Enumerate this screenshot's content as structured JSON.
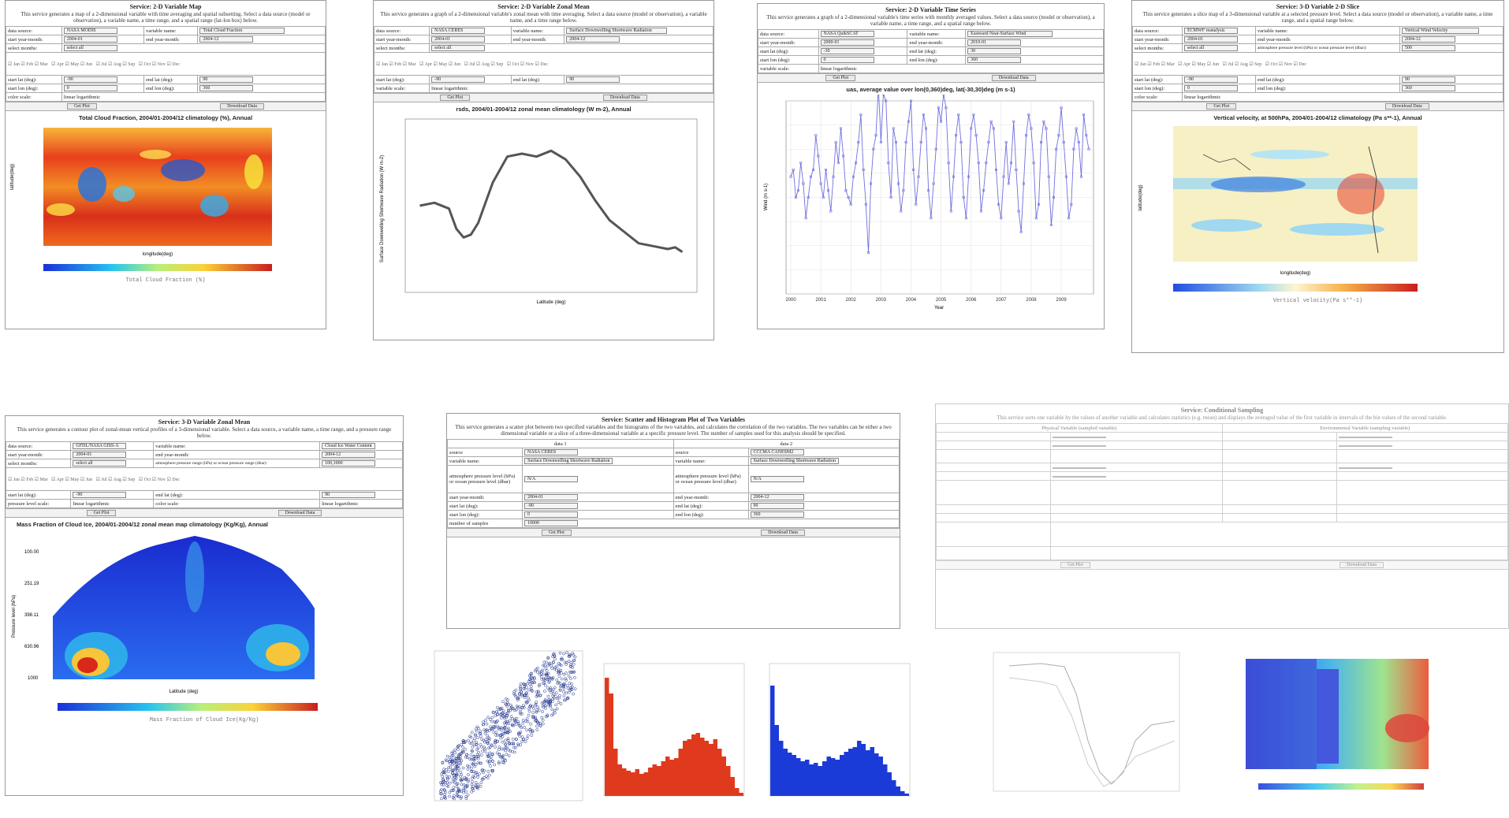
{
  "panels": {
    "map": {
      "title": "Service: 2-D Variable Map",
      "desc": "This service generates a map of a 2-dimensional variable with time averaging and spatial subsetting. Select a data source (model or observation), a variable name, a time range, and a spatial range (lat-lon box) below.",
      "labels": {
        "source": "data source:",
        "var": "variable name:",
        "start": "start year-month:",
        "end": "end year-month:",
        "months": "select months:",
        "startlat": "start lat (deg):",
        "endlat": "end lat (deg):",
        "startlon": "start lon (deg):",
        "endlon": "end lon (deg):",
        "scale": "color scale:"
      },
      "values": {
        "source": "NASA MODIS",
        "var": "Total Cloud Fraction",
        "start": "2004-01",
        "end": "2004-12",
        "months": "select all",
        "startlat": "-90",
        "endlat": "90",
        "startlon": "0",
        "endlon": "360",
        "scale": "linear  logarithmic"
      },
      "buttons": [
        "Get Plot",
        "Download Data"
      ],
      "chart_title": "Total Cloud Fraction, 2004/01-2004/12 climatology (%), Annual",
      "xlabel": "longitude(deg)",
      "ylabel": "latitude(deg)",
      "cbar_label": "Total Cloud Fraction (%)"
    },
    "zonal": {
      "title": "Service: 2-D Variable Zonal Mean",
      "desc": "This service generates a graph of a 2-dimensional variable's zonal mean with time averaging. Select a data source (model or observation), a variable name, and a time range below.",
      "labels": {
        "source": "data source:",
        "var": "variable name:",
        "start": "start year-month:",
        "end": "end year-month:",
        "months": "select months:",
        "startlat": "start lat (deg):",
        "endlat": "end lat (deg):",
        "scale": "variable scale:"
      },
      "values": {
        "source": "NASA CERES",
        "var": "Surface Downwelling Shortwave Radiation",
        "start": "2004-01",
        "end": "2004-12",
        "months": "select all",
        "startlat": "-90",
        "endlat": "90",
        "scale": "linear  logarithmic"
      },
      "buttons": [
        "Get Plot",
        "Download Data"
      ],
      "chart_title": "rsds, 2004/01-2004/12 zonal mean climatology (W m-2), Annual",
      "xlabel": "Latitude (deg)",
      "ylabel": "Surface Downwelling Shortwave Radiation (W m-2)"
    },
    "timeseries": {
      "title": "Service: 2-D Variable Time Series",
      "desc": "This service generates a graph of a 2-dimensional variable's time series with monthly averaged values. Select a data source (model or observation), a variable name, a time range, and a spatial range below.",
      "labels": {
        "source": "data source:",
        "var": "variable name:",
        "start": "start year-month:",
        "end": "end year-month:",
        "startlat": "start lat (deg):",
        "endlat": "end lat (deg):",
        "startlon": "start lon (deg):",
        "endlon": "end lon (deg):",
        "scale": "variable scale:"
      },
      "values": {
        "source": "NASA QuikSCAT",
        "var": "Eastward Near-Surface Wind",
        "start": "2000-01",
        "end": "2010-01",
        "startlat": "-30",
        "endlat": "30",
        "startlon": "0",
        "endlon": "360",
        "scale": "linear  logarithmic"
      },
      "buttons": [
        "Get Plot",
        "Download Data"
      ],
      "chart_title": "uas, average value over lon(0,360)deg, lat(-30,30)deg (m s-1)",
      "xlabel": "Year",
      "ylabel": "Wind (m s-1)"
    },
    "slice": {
      "title": "Service: 3-D Variable 2-D Slice",
      "desc": "This service generates a slice map of a 3-dimensional variable at a selected pressure level. Select a data source (model or observation), a variable name, a time range, and a spatial range below.",
      "labels": {
        "source": "data source:",
        "var": "variable name:",
        "start": "start year-month:",
        "end": "end year-month:",
        "months": "select months:",
        "plev": "atmosphere pressure level (hPa) or ocean pressure level (dbar):",
        "startlat": "start lat (deg):",
        "endlat": "end lat (deg):",
        "startlon": "start lon (deg):",
        "endlon": "end lon (deg):",
        "scale": "color scale:"
      },
      "values": {
        "source": "ECMWF reanalysis",
        "var": "Vertical Wind Velocity",
        "start": "2004-01",
        "end": "2004-12",
        "months": "select all",
        "plev": "500",
        "startlat": "-90",
        "endlat": "90",
        "startlon": "0",
        "endlon": "360",
        "scale": "linear  logarithmic"
      },
      "buttons": [
        "Get Plot",
        "Download Data"
      ],
      "chart_title": "Vertical velocity, at 500hPa, 2004/01-2004/12 climatology (Pa s**-1), Annual",
      "xlabel": "longitude(deg)",
      "ylabel": "latitude(deg)",
      "cbar_label": "Vertical velocity(Pa s**-1)"
    },
    "zonal3d": {
      "title": "Service: 3-D Variable Zonal Mean",
      "desc": "This service generates a contour plot of zonal-mean vertical profiles of a 3-dimensional variable. Select a data source, a variable name, a time range, and a pressure range below.",
      "labels": {
        "source": "data source:",
        "var": "variable name:",
        "start": "start year-month:",
        "end": "end year-month:",
        "months": "select months:",
        "plev": "atmosphere pressure range (hPa) or ocean pressure range (dbar):",
        "startlat": "start lat (deg):",
        "endlat": "end lat (deg):",
        "plscale": "pressure level scale:",
        "scale": "color scale:"
      },
      "values": {
        "source": "GFDL/NASA GISS-A",
        "var": "Cloud Ice Water Content",
        "start": "2004-01",
        "end": "2004-12",
        "months": "select all",
        "plev": "100,1000",
        "startlat": "-90",
        "endlat": "90",
        "plscale": "linear  logarithmic",
        "scale": "linear  logarithmic"
      },
      "buttons": [
        "Get Plot",
        "Download Data"
      ],
      "chart_title": "Mass Fraction of Cloud Ice, 2004/01-2004/12 zonal mean map climatology (Kg/Kg), Annual",
      "xlabel": "Latitude (deg)",
      "ylabel": "Pressure level (hPa)",
      "yticks": [
        "100.00",
        "251.19",
        "398.11",
        "630.96",
        "1000"
      ],
      "cbar_label": "Mass Fraction of Cloud Ice(Kg/Kg)"
    },
    "scatter": {
      "title": "Service: Scatter and Histogram Plot of Two Variables",
      "desc": "This service generates a scatter plot between two specified variables and the histograms of the two variables, and calculates the correlation of the two variables. The two variables can be either a two dimensional variable or a slice of a three-dimensional variable at a specific pressure level. The number of samples used for this analysis should be specified.",
      "col1": "data 1",
      "col2": "data 2",
      "labels": {
        "source": "source",
        "var": "variable name:",
        "plev": "atmosphere pressure level (hPa) or ocean pressure level (dbar)",
        "start": "start year-month:",
        "end": "end year-month:",
        "startlat": "start lat (deg):",
        "endlat": "end lat (deg):",
        "startlon": "start lon (deg):",
        "endlon": "end lon (deg):",
        "nsamp": "number of samples"
      },
      "values": {
        "source1": "NASA CERES",
        "source2": "CCCMA CANESM2",
        "var1": "Surface Downwelling Shortwave Radiation",
        "var2": "Surface Downwelling Shortwave Radiation",
        "plev1": "N/A",
        "plev2": "N/A",
        "start": "2004-01",
        "end": "2004-12",
        "startlat": "-90",
        "endlat": "90",
        "startlon": "0",
        "endlon": "360",
        "nsamp": "10000"
      },
      "buttons": [
        "Get Plot",
        "Download Data"
      ]
    },
    "cond": {
      "title": "Service: Conditional Sampling",
      "desc": "This service sorts one variable by the values of another variable and calculates statistics (e.g. mean) and displays the averaged value of the first variable in intervals of the bin values of the second variable.",
      "col1": "Physical Variable (sampled variable)",
      "col2": "Environmental Variable (sampling variable)",
      "buttons": [
        "Get Plot",
        "Download Data"
      ]
    }
  },
  "colors": {
    "warm": "#e03a1e",
    "cool": "#1b3bd8",
    "line": "#6f6fe0",
    "gray": "#555555"
  },
  "chart_data": [
    {
      "type": "heatmap",
      "title": "Total Cloud Fraction, 2004/01-2004/12 climatology (%), Annual",
      "xlabel": "longitude(deg)",
      "ylabel": "latitude(deg)",
      "xlim": [
        0,
        360
      ],
      "ylim": [
        -90,
        90
      ]
    },
    {
      "type": "line",
      "title": "rsds, 2004/01-2004/12 zonal mean climatology (W m-2), Annual",
      "xlabel": "Latitude (deg)",
      "ylabel": "Surface Downwelling Shortwave Radiation (W m-2)",
      "x": [
        -90,
        -80,
        -70,
        -65,
        -60,
        -55,
        -50,
        -40,
        -30,
        -20,
        -10,
        0,
        10,
        20,
        30,
        40,
        50,
        60,
        70,
        80,
        85,
        90
      ],
      "y": [
        150,
        155,
        145,
        110,
        95,
        100,
        120,
        190,
        235,
        240,
        235,
        245,
        230,
        200,
        160,
        125,
        105,
        85,
        80,
        75,
        78,
        70
      ],
      "ylim": [
        0,
        300
      ],
      "xlim": [
        -100,
        100
      ]
    },
    {
      "type": "line",
      "title": "uas, average value over lon(0,360)deg, lat(-30,30)deg (m s-1)",
      "xlabel": "Year",
      "ylabel": "Wind (m s-1)",
      "x_start": "2000-01",
      "x_step": "month",
      "xticks": [
        "2000",
        "2001",
        "2002",
        "2003",
        "2004",
        "2005",
        "2006",
        "2007",
        "2008",
        "2009"
      ],
      "y": [
        -0.3,
        -0.2,
        -0.6,
        -0.5,
        -0.1,
        -0.4,
        -0.9,
        -0.6,
        -0.3,
        -0.2,
        0.3,
        0.0,
        -0.4,
        -0.6,
        -0.2,
        -0.5,
        -0.8,
        -0.3,
        0.2,
        -0.1,
        0.4,
        0.0,
        -0.5,
        -0.6,
        -0.7,
        -0.3,
        -0.1,
        0.2,
        0.6,
        -0.2,
        -0.7,
        -1.4,
        -0.4,
        0.1,
        0.3,
        1.0,
        0.2,
        0.9,
        0.8,
        -0.1,
        -0.6,
        0.4,
        0.2,
        -0.4,
        -0.8,
        -0.5,
        0.2,
        0.5,
        0.8,
        -0.2,
        -0.7,
        -0.3,
        0.2,
        0.6,
        0.4,
        -0.5,
        -0.9,
        -0.4,
        0.1,
        0.7,
        0.5,
        0.9,
        0.7,
        -0.1,
        -0.8,
        -0.3,
        0.3,
        0.6,
        0.2,
        -0.6,
        -0.9,
        -0.3,
        0.4,
        0.6,
        0.3,
        -0.1,
        -0.8,
        -0.5,
        -0.1,
        0.2,
        0.5,
        0.4,
        -0.2,
        -0.7,
        -0.9,
        -0.3,
        0.2,
        -0.4,
        -0.1,
        0.5,
        -0.2,
        -0.8,
        -1.1,
        -0.4,
        0.3,
        0.6,
        0.4,
        -0.1,
        -0.9,
        -0.7,
        0.2,
        0.5,
        0.4,
        -0.3,
        -1.0,
        -0.6,
        0.1,
        0.3,
        0.7,
        0.2,
        -0.3,
        -0.9,
        -0.7,
        0.1,
        0.4,
        0.2,
        -0.3,
        0.6,
        0.3,
        0.1
      ],
      "ylim": [
        -2.0,
        0.8
      ]
    },
    {
      "type": "heatmap",
      "title": "Vertical velocity, at 500hPa, 2004/01-2004/12 climatology (Pa s**-1), Annual",
      "xlabel": "longitude(deg)",
      "ylabel": "latitude(deg)",
      "xlim": [
        0,
        360
      ],
      "ylim": [
        -90,
        90
      ]
    },
    {
      "type": "heatmap",
      "title": "Mass Fraction of Cloud Ice, 2004/01-2004/12 zonal mean map climatology (Kg/Kg), Annual",
      "xlabel": "Latitude (deg)",
      "ylabel": "Pressure level (hPa)"
    }
  ]
}
